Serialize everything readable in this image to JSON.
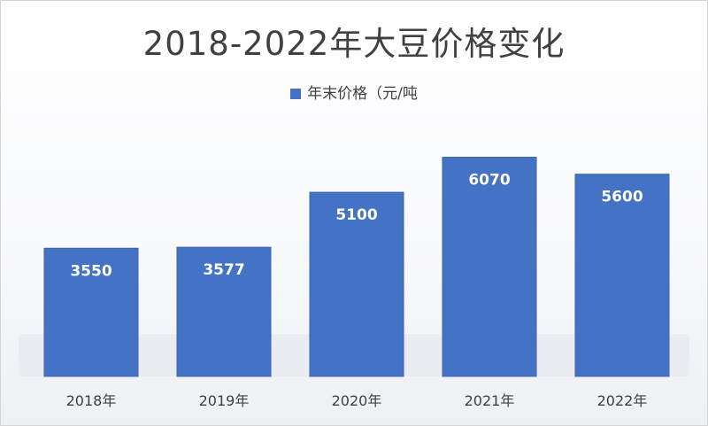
{
  "chart_data": {
    "type": "bar",
    "title": "2018-2022年大豆价格变化",
    "categories": [
      "2018年",
      "2019年",
      "2020年",
      "2021年",
      "2022年"
    ],
    "series": [
      {
        "name": "年末价格（元/吨",
        "values": [
          3550,
          3577,
          5100,
          6070,
          5600
        ]
      }
    ],
    "data_labels": [
      "3550",
      "3577",
      "5100",
      "6070",
      "5600"
    ],
    "ylim": [
      0,
      6500
    ],
    "grid": false,
    "legend": "top-center",
    "colors": {
      "bar": "#4472c4",
      "bar_edge": "#3a65ae",
      "data_label": "#ffffff",
      "text": "#404040"
    }
  }
}
